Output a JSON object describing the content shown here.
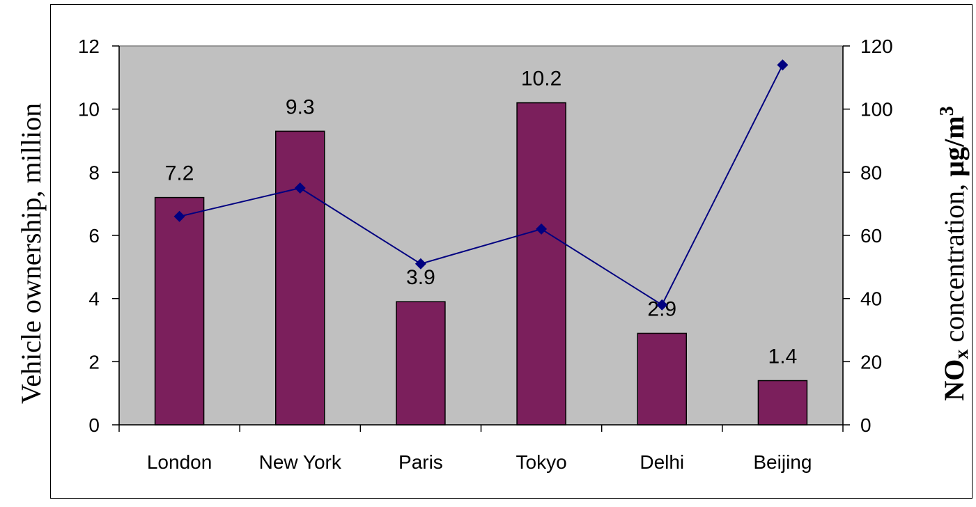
{
  "chart_data": {
    "type": "bar",
    "categories": [
      "London",
      "New York",
      "Paris",
      "Tokyo",
      "Delhi",
      "Beijing"
    ],
    "series": [
      {
        "type": "bar",
        "axis": "left",
        "values": [
          7.2,
          9.3,
          3.9,
          10.2,
          2.9,
          1.4
        ],
        "data_labels": [
          "7.2",
          "9.3",
          "3.9",
          "10.2",
          "2.9",
          "1.4"
        ],
        "color": "#7b1f5c"
      },
      {
        "type": "line",
        "axis": "right",
        "values": [
          66,
          75,
          51,
          62,
          38,
          114
        ],
        "color": "#000080"
      }
    ],
    "ylabel": "Vehicle ownership, million",
    "y2label": {
      "main": "NO",
      "subscript": "x",
      "rest": " concentration, ",
      "unit": "µg/m",
      "superscript": "3"
    },
    "ylim": [
      0,
      12
    ],
    "y2lim": [
      0,
      120
    ],
    "yticks": [
      0,
      2,
      4,
      6,
      8,
      10,
      12
    ],
    "y2ticks": [
      0,
      20,
      40,
      60,
      80,
      100,
      120
    ],
    "plot_background": "#c0c0c0",
    "grid": false,
    "legend": "none"
  }
}
